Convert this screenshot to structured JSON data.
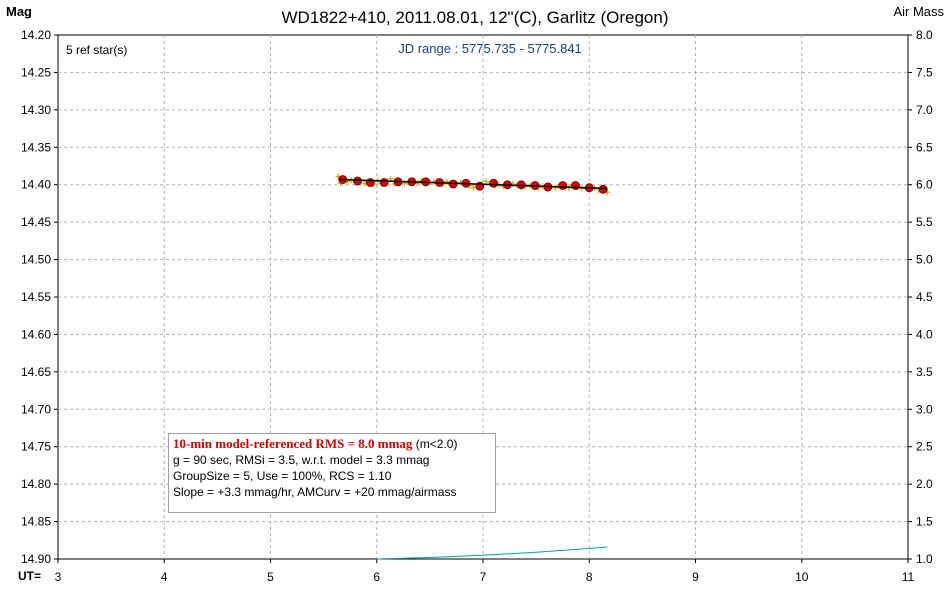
{
  "chart_data": {
    "type": "scatter",
    "title": "WD1822+410, 2011.08.01, 12\"(C), Garlitz (Oregon)",
    "y_left_label": "Mag",
    "y_right_label": "Air Mass",
    "x_label": "UT=",
    "annotation_ref": "5 ref star(s)",
    "annotation_jd": "JD range : 5775.735 - 5775.841",
    "xlim": [
      3,
      11
    ],
    "x_ticks": [
      "3",
      "4",
      "5",
      "6",
      "7",
      "8",
      "9",
      "10",
      "11"
    ],
    "ylim_left": [
      14.2,
      14.9
    ],
    "y_left_ticks": [
      "14.20",
      "14.25",
      "14.30",
      "14.35",
      "14.40",
      "14.45",
      "14.50",
      "14.55",
      "14.60",
      "14.65",
      "14.70",
      "14.75",
      "14.80",
      "14.85",
      "14.90"
    ],
    "ylim_right": [
      1.0,
      8.0
    ],
    "y_right_ticks": [
      "8.0",
      "7.5",
      "7.0",
      "6.5",
      "6.0",
      "5.5",
      "5.0",
      "4.5",
      "4.0",
      "3.5",
      "3.0",
      "2.5",
      "2.0",
      "1.5",
      "1.0"
    ],
    "grid": true,
    "series": [
      {
        "kind": "raw",
        "color": "#e8a000",
        "points": [
          [
            5.64,
            14.389
          ],
          [
            5.66,
            14.398
          ],
          [
            5.69,
            14.392
          ],
          [
            5.72,
            14.396
          ],
          [
            5.76,
            14.394
          ],
          [
            5.8,
            14.397
          ],
          [
            5.85,
            14.395
          ],
          [
            5.89,
            14.398
          ],
          [
            5.93,
            14.396
          ],
          [
            5.97,
            14.399
          ],
          [
            6.01,
            14.395
          ],
          [
            6.05,
            14.398
          ],
          [
            6.09,
            14.396
          ],
          [
            6.13,
            14.392
          ],
          [
            6.17,
            14.399
          ],
          [
            6.21,
            14.395
          ],
          [
            6.26,
            14.398
          ],
          [
            6.3,
            14.396
          ],
          [
            6.34,
            14.394
          ],
          [
            6.38,
            14.398
          ],
          [
            6.42,
            14.395
          ],
          [
            6.46,
            14.399
          ],
          [
            6.5,
            14.397
          ],
          [
            6.54,
            14.396
          ],
          [
            6.58,
            14.398
          ],
          [
            6.62,
            14.399
          ],
          [
            6.66,
            14.396
          ],
          [
            6.7,
            14.4
          ],
          [
            6.74,
            14.398
          ],
          [
            6.79,
            14.397
          ],
          [
            6.83,
            14.399
          ],
          [
            6.87,
            14.401
          ],
          [
            6.91,
            14.404
          ],
          [
            6.95,
            14.403
          ],
          [
            6.99,
            14.4
          ],
          [
            7.03,
            14.396
          ],
          [
            7.07,
            14.399
          ],
          [
            7.11,
            14.401
          ],
          [
            7.15,
            14.4
          ],
          [
            7.19,
            14.402
          ],
          [
            7.24,
            14.4
          ],
          [
            7.28,
            14.399
          ],
          [
            7.32,
            14.401
          ],
          [
            7.36,
            14.403
          ],
          [
            7.4,
            14.402
          ],
          [
            7.44,
            14.401
          ],
          [
            7.48,
            14.403
          ],
          [
            7.52,
            14.404
          ],
          [
            7.56,
            14.402
          ],
          [
            7.6,
            14.405
          ],
          [
            7.64,
            14.403
          ],
          [
            7.68,
            14.404
          ],
          [
            7.73,
            14.401
          ],
          [
            7.77,
            14.402
          ],
          [
            7.81,
            14.404
          ],
          [
            7.85,
            14.4
          ],
          [
            7.89,
            14.403
          ],
          [
            7.93,
            14.405
          ],
          [
            7.97,
            14.404
          ],
          [
            8.01,
            14.406
          ],
          [
            8.05,
            14.404
          ],
          [
            8.09,
            14.407
          ],
          [
            8.13,
            14.405
          ],
          [
            8.17,
            14.41
          ]
        ]
      },
      {
        "kind": "binned",
        "color": "#dd0000",
        "points": [
          [
            5.68,
            14.393
          ],
          [
            5.82,
            14.395
          ],
          [
            5.94,
            14.397
          ],
          [
            6.07,
            14.397
          ],
          [
            6.2,
            14.396
          ],
          [
            6.33,
            14.396
          ],
          [
            6.46,
            14.396
          ],
          [
            6.59,
            14.397
          ],
          [
            6.72,
            14.399
          ],
          [
            6.84,
            14.398
          ],
          [
            6.97,
            14.402
          ],
          [
            7.1,
            14.398
          ],
          [
            7.23,
            14.4
          ],
          [
            7.36,
            14.4
          ],
          [
            7.49,
            14.401
          ],
          [
            7.61,
            14.403
          ],
          [
            7.75,
            14.401
          ],
          [
            7.87,
            14.401
          ],
          [
            8.0,
            14.404
          ],
          [
            8.13,
            14.406
          ]
        ]
      },
      {
        "kind": "model",
        "color": "#000000",
        "points": [
          [
            5.64,
            14.393
          ],
          [
            8.17,
            14.405
          ]
        ]
      },
      {
        "kind": "airmass",
        "color": "#00a0b0",
        "points": [
          [
            6.0,
            1.0
          ],
          [
            6.5,
            1.02
          ],
          [
            7.0,
            1.05
          ],
          [
            7.5,
            1.09
          ],
          [
            8.0,
            1.14
          ],
          [
            8.17,
            1.16
          ]
        ]
      }
    ]
  },
  "info": {
    "line1_highlight": "10-min model-referenced RMS = 8.0 mmag",
    "line1_tail": " (m<2.0)",
    "line2": "g = 90 sec, RMSi = 3.5, w.r.t. model = 3.3 mmag",
    "line3": "GroupSize = 5, Use = 100%, RCS = 1.10",
    "line4": "Slope = +3.3 mmag/hr, AMCurv = +20 mmag/airmass"
  }
}
